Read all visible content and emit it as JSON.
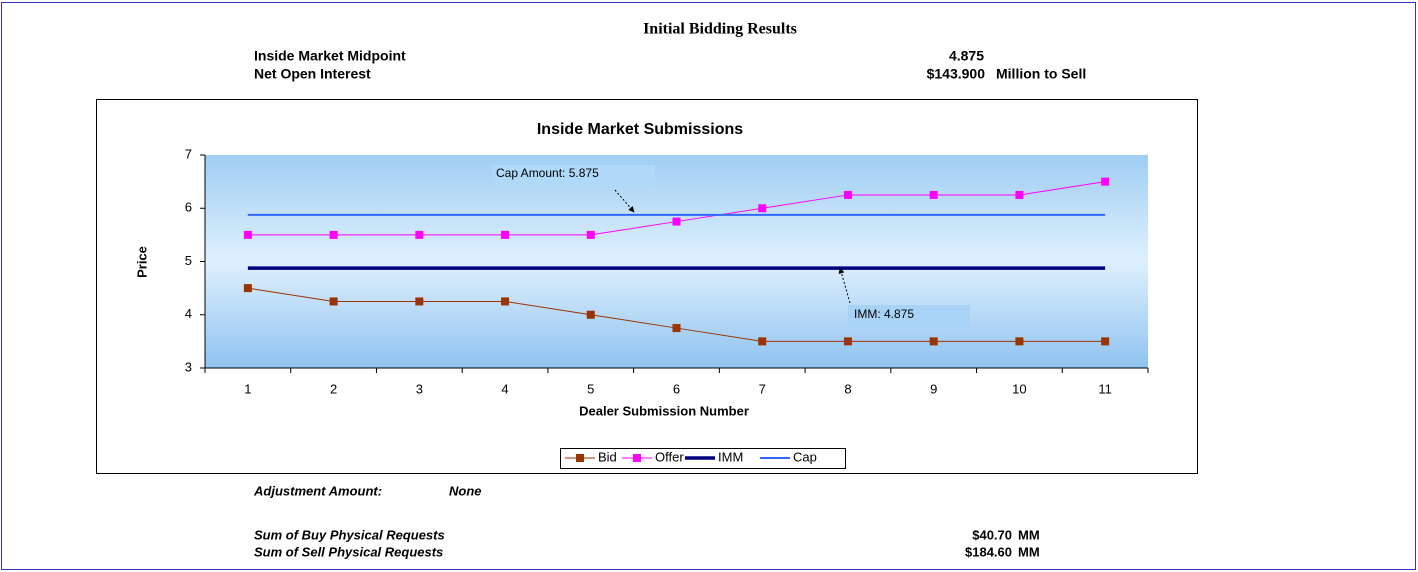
{
  "header": {
    "title": "Initial Bidding Results",
    "rows": [
      {
        "label": "Inside Market Midpoint",
        "value": "4.875"
      },
      {
        "label": "Net Open Interest",
        "value": "$143.900",
        "unit": "Million to Sell"
      }
    ]
  },
  "chart_data": {
    "type": "line",
    "title": "Inside Market Submissions",
    "x_label": "Dealer Submission Number",
    "y_label": "Price",
    "categories": [
      1,
      2,
      3,
      4,
      5,
      6,
      7,
      8,
      9,
      10,
      11
    ],
    "series": [
      {
        "name": "Bid",
        "color": "#993300",
        "marker": true,
        "values": [
          4.5,
          4.25,
          4.25,
          4.25,
          4.0,
          3.75,
          3.5,
          3.5,
          3.5,
          3.5,
          3.5
        ]
      },
      {
        "name": "Offer",
        "color": "#ff00ff",
        "marker": true,
        "values": [
          5.5,
          5.5,
          5.5,
          5.5,
          5.5,
          5.75,
          6.0,
          6.25,
          6.25,
          6.25,
          6.5
        ]
      },
      {
        "name": "IMM",
        "color": "#000080",
        "marker": false,
        "values": [
          4.875,
          4.875,
          4.875,
          4.875,
          4.875,
          4.875,
          4.875,
          4.875,
          4.875,
          4.875,
          4.875
        ]
      },
      {
        "name": "Cap",
        "color": "#3366ff",
        "marker": false,
        "values": [
          5.875,
          5.875,
          5.875,
          5.875,
          5.875,
          5.875,
          5.875,
          5.875,
          5.875,
          5.875,
          5.875
        ]
      }
    ],
    "ylim": [
      3,
      7
    ],
    "yticks": [
      3,
      4,
      5,
      6,
      7
    ],
    "annotations": [
      "Cap Amount: 5.875",
      "IMM: 4.875"
    ]
  },
  "footer": {
    "adjustment": {
      "label": "Adjustment Amount:",
      "value": "None"
    },
    "rows": [
      {
        "label": "Sum of Buy Physical Requests",
        "value": "$40.70",
        "unit": "MM"
      },
      {
        "label": "Sum of Sell Physical Requests",
        "value": "$184.60",
        "unit": "MM"
      }
    ]
  }
}
